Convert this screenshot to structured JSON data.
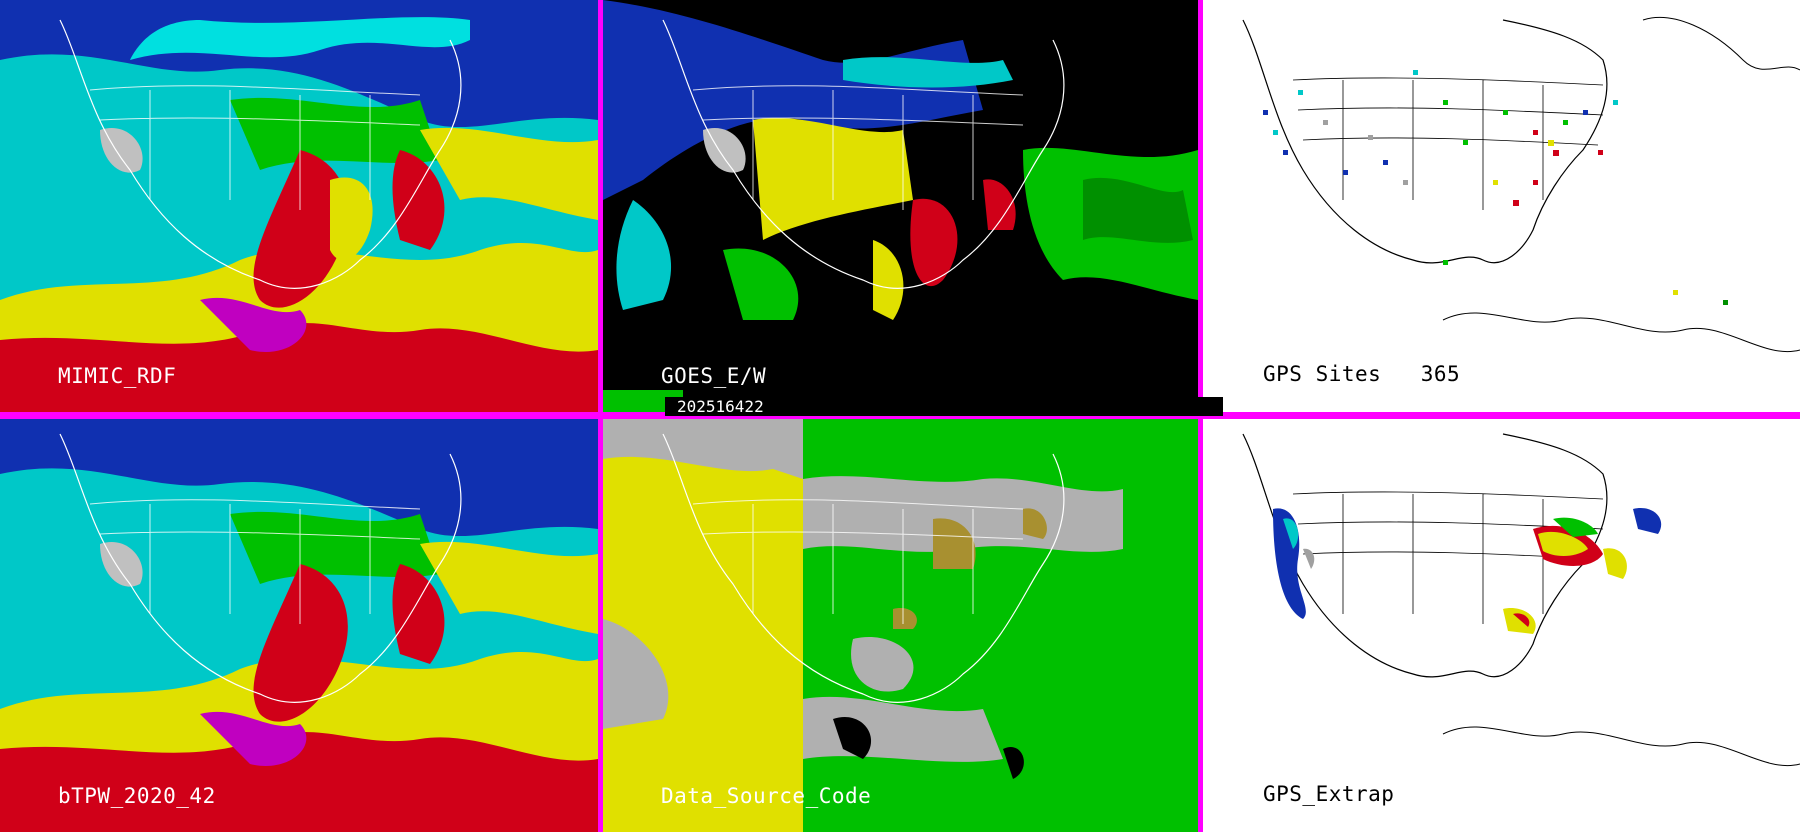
{
  "panels": {
    "mimic": {
      "label": "MIMIC_RDF"
    },
    "goes": {
      "label": "GOES_E/W"
    },
    "gps_sites": {
      "label": "GPS Sites",
      "count": "365"
    },
    "btpw": {
      "label": "bTPW_2020_42"
    },
    "data_source": {
      "label": "Data_Source_Code"
    },
    "gps_extrap": {
      "label": "GPS_Extrap"
    }
  },
  "timestamp": "202516422",
  "colors": {
    "border": "#ff00ff",
    "tpw_scale": [
      "#000000",
      "#1010a0",
      "#2050e0",
      "#00e0e0",
      "#00e000",
      "#e0e000",
      "#e00000",
      "#e000e0"
    ]
  }
}
